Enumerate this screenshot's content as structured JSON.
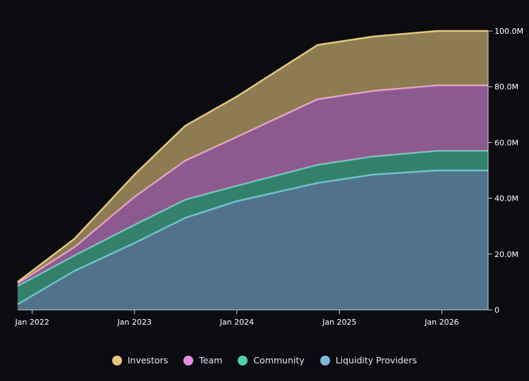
{
  "chart_data": {
    "type": "area",
    "stacked": true,
    "x": [
      "2021-11-10",
      "2022-06-01",
      "2023-01-01",
      "2023-07-01",
      "2024-01-01",
      "2024-10-15",
      "2025-05-01",
      "2025-12-15",
      "2026-06-15"
    ],
    "x_ticks": [
      "Jan 2022",
      "Jan 2023",
      "Jan 2024",
      "Jan 2025",
      "Jan 2026"
    ],
    "y_ticks": [
      "0",
      "20.0M",
      "40.0M",
      "60.0M",
      "80.0M",
      "100.0M"
    ],
    "ylim": [
      0,
      100000000
    ],
    "y_axis_position": "right",
    "legend_position": "bottom-center",
    "grid": false,
    "series": [
      {
        "name": "Liquidity Providers",
        "color": "#7eb9dd",
        "values": [
          2000000,
          14000000,
          24000000,
          33000000,
          39000000,
          45500000,
          48500000,
          50000000,
          50000000
        ]
      },
      {
        "name": "Community",
        "color": "#4fd1a8",
        "values": [
          6500000,
          5500000,
          6500000,
          6500000,
          5500000,
          6500000,
          6500000,
          7000000,
          7000000
        ]
      },
      {
        "name": "Team",
        "color": "#e28fe3",
        "values": [
          1000000,
          3000000,
          10000000,
          14000000,
          17500000,
          23500000,
          23500000,
          23500000,
          23500000
        ]
      },
      {
        "name": "Investors",
        "color": "#e5c77f",
        "values": [
          500000,
          3000000,
          8000000,
          12500000,
          14500000,
          19500000,
          19500000,
          19500000,
          19500000
        ]
      }
    ]
  },
  "legend": {
    "items": [
      {
        "name": "Investors",
        "color": "#e5c77f"
      },
      {
        "name": "Team",
        "color": "#e28fe3"
      },
      {
        "name": "Community",
        "color": "#4fd1a8"
      },
      {
        "name": "Liquidity Providers",
        "color": "#7eb9dd"
      }
    ]
  }
}
